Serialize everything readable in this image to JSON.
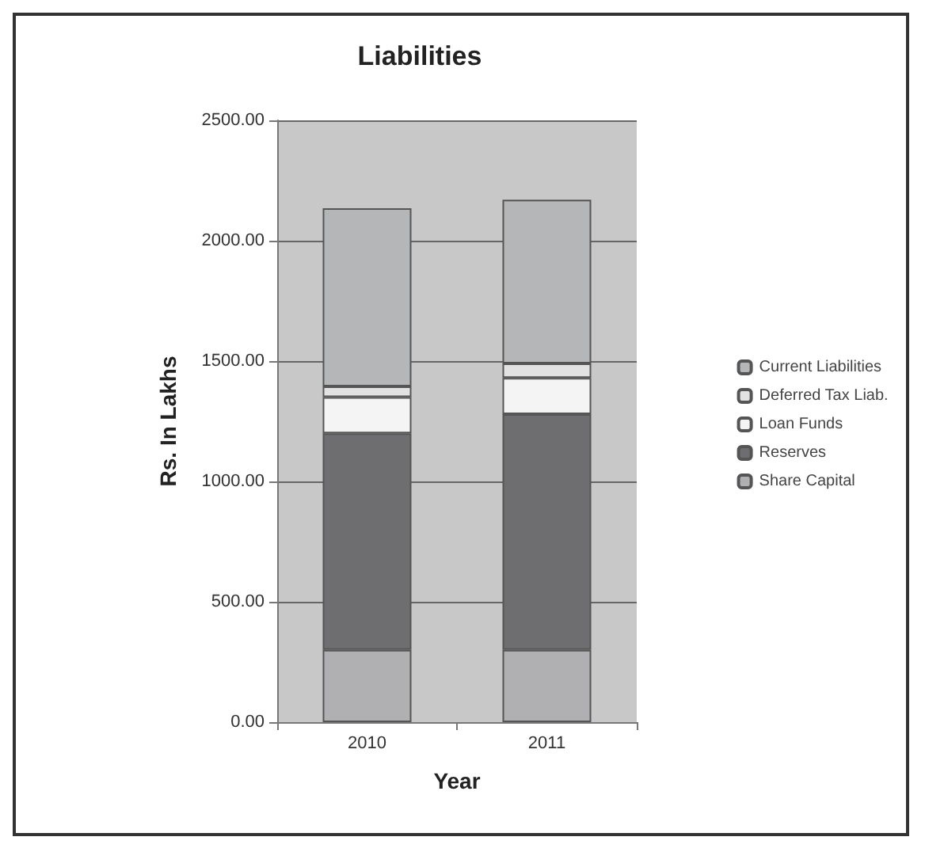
{
  "chart_data": {
    "type": "bar",
    "title": "Liabilities",
    "xlabel": "Year",
    "ylabel": "Rs. In Lakhs",
    "categories": [
      "2010",
      "2011"
    ],
    "stacked": true,
    "series": [
      {
        "name": "Share Capital",
        "color": "#b0b0b2",
        "values": [
          300,
          300
        ]
      },
      {
        "name": "Reserves",
        "color": "#6e6e70",
        "values": [
          900,
          980
        ]
      },
      {
        "name": "Loan Funds",
        "color": "#f4f4f4",
        "values": [
          150,
          150
        ]
      },
      {
        "name": "Deferred Tax Liab.",
        "color": "#e2e2e2",
        "values": [
          45,
          60
        ]
      },
      {
        "name": "Current Liabilities",
        "color": "#b4b6b8",
        "values": [
          740,
          680
        ]
      }
    ],
    "ylim": [
      0,
      2500
    ],
    "yticks": [
      {
        "value": 0,
        "label": "0.00"
      },
      {
        "value": 500,
        "label": "500.00"
      },
      {
        "value": 1000,
        "label": "1000.00"
      },
      {
        "value": 1500,
        "label": "1500.00"
      },
      {
        "value": 2000,
        "label": "2000.00"
      },
      {
        "value": 2500,
        "label": "2500.00"
      }
    ],
    "grid": "y",
    "legend": "right"
  }
}
